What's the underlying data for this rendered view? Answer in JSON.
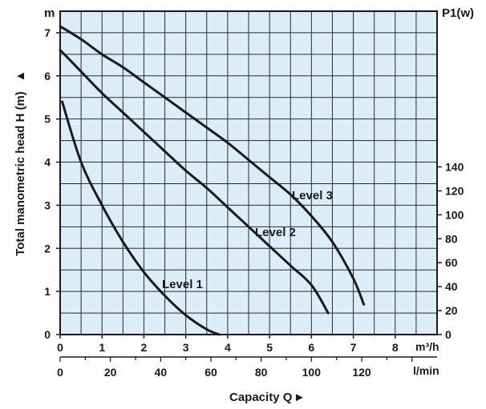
{
  "chart_data": {
    "type": "line",
    "ylabel": "Total manometric head H (m)",
    "ylabel_arrow": "▲",
    "xlabel": "Capacity Q",
    "xlabel_arrow": "►",
    "y_unit": "m",
    "x_unit": "m³/h",
    "x2_unit": "l/min",
    "y2_unit": "P1(w)",
    "xlim": [
      0,
      9
    ],
    "ylim": [
      0,
      7.5
    ],
    "grid": true,
    "background_color": "#dbeef7",
    "line_color": "#1a1a1a",
    "x_ticks": [
      "0",
      "1",
      "2",
      "3",
      "4",
      "5",
      "6",
      "7",
      "8"
    ],
    "x2_ticks": [
      "0",
      "20",
      "40",
      "60",
      "80",
      "100",
      "120"
    ],
    "y_ticks": [
      "0",
      "1",
      "2",
      "3",
      "4",
      "5",
      "6",
      "7"
    ],
    "y2_ticks": [
      "0",
      "20",
      "40",
      "60",
      "80",
      "100",
      "120",
      "140"
    ],
    "series": [
      {
        "name": "Level 1",
        "points": [
          [
            0.05,
            5.4
          ],
          [
            0.5,
            4.0
          ],
          [
            1.0,
            3.0
          ],
          [
            1.5,
            2.15
          ],
          [
            2.0,
            1.45
          ],
          [
            2.5,
            0.9
          ],
          [
            3.0,
            0.45
          ],
          [
            3.5,
            0.12
          ],
          [
            3.8,
            0.0
          ]
        ]
      },
      {
        "name": "Level 2",
        "points": [
          [
            0.0,
            6.6
          ],
          [
            0.5,
            6.1
          ],
          [
            1.0,
            5.6
          ],
          [
            1.5,
            5.15
          ],
          [
            2.0,
            4.7
          ],
          [
            2.5,
            4.25
          ],
          [
            3.0,
            3.8
          ],
          [
            3.5,
            3.4
          ],
          [
            4.0,
            2.95
          ],
          [
            4.5,
            2.5
          ],
          [
            5.0,
            2.05
          ],
          [
            5.5,
            1.6
          ],
          [
            6.0,
            1.15
          ],
          [
            6.4,
            0.5
          ]
        ]
      },
      {
        "name": "Level 3",
        "points": [
          [
            0.0,
            7.15
          ],
          [
            0.5,
            6.85
          ],
          [
            1.0,
            6.5
          ],
          [
            1.5,
            6.2
          ],
          [
            2.0,
            5.85
          ],
          [
            2.5,
            5.5
          ],
          [
            3.0,
            5.15
          ],
          [
            3.5,
            4.8
          ],
          [
            4.0,
            4.45
          ],
          [
            4.5,
            4.05
          ],
          [
            5.0,
            3.65
          ],
          [
            5.5,
            3.25
          ],
          [
            6.0,
            2.75
          ],
          [
            6.5,
            2.15
          ],
          [
            7.0,
            1.3
          ],
          [
            7.25,
            0.7
          ]
        ]
      }
    ]
  }
}
